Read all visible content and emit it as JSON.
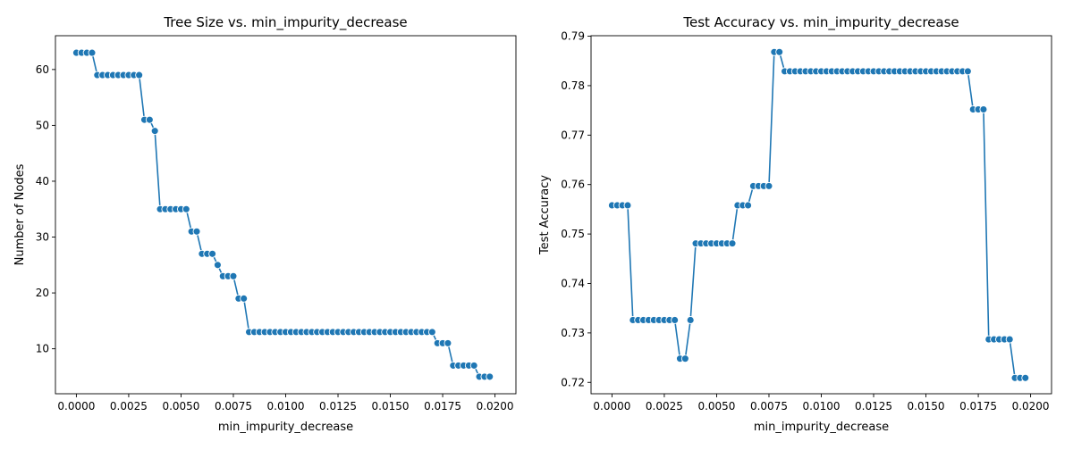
{
  "chart_data": [
    {
      "type": "line",
      "title": "Tree Size vs. min_impurity_decrease",
      "xlabel": "min_impurity_decrease",
      "ylabel": "Number of Nodes",
      "xlim": [
        -0.001,
        0.021
      ],
      "ylim": [
        1.95,
        66.05
      ],
      "xticks": [
        0.0,
        0.0025,
        0.005,
        0.0075,
        0.01,
        0.0125,
        0.015,
        0.0175,
        0.02
      ],
      "xtick_labels": [
        "0.0000",
        "0.0025",
        "0.0050",
        "0.0075",
        "0.0100",
        "0.0125",
        "0.0150",
        "0.0175",
        "0.0200"
      ],
      "yticks": [
        10,
        20,
        30,
        40,
        50,
        60
      ],
      "ytick_labels": [
        "10",
        "20",
        "30",
        "40",
        "50",
        "60"
      ],
      "grid": false,
      "marker": "circle",
      "color": "#1f77b4",
      "x": [
        0.0,
        0.00025,
        0.0005,
        0.00075,
        0.001,
        0.00125,
        0.0015,
        0.00175,
        0.002,
        0.00225,
        0.0025,
        0.00275,
        0.003,
        0.00325,
        0.0035,
        0.00375,
        0.004,
        0.00425,
        0.0045,
        0.00475,
        0.005,
        0.00525,
        0.0055,
        0.00575,
        0.006,
        0.00625,
        0.0065,
        0.00675,
        0.007,
        0.00725,
        0.0075,
        0.00775,
        0.008,
        0.00825,
        0.0085,
        0.00875,
        0.009,
        0.00925,
        0.0095,
        0.00975,
        0.01,
        0.01025,
        0.0105,
        0.01075,
        0.011,
        0.01125,
        0.0115,
        0.01175,
        0.012,
        0.01225,
        0.0125,
        0.01275,
        0.013,
        0.01325,
        0.0135,
        0.01375,
        0.014,
        0.01425,
        0.0145,
        0.01475,
        0.015,
        0.01525,
        0.0155,
        0.01575,
        0.016,
        0.01625,
        0.0165,
        0.01675,
        0.017,
        0.01725,
        0.0175,
        0.01775,
        0.018,
        0.01825,
        0.0185,
        0.01875,
        0.019,
        0.01925,
        0.0195,
        0.01975
      ],
      "y": [
        63,
        63,
        63,
        63,
        59,
        59,
        59,
        59,
        59,
        59,
        59,
        59,
        59,
        51,
        51,
        49,
        35,
        35,
        35,
        35,
        35,
        35,
        31,
        31,
        27,
        27,
        27,
        25,
        23,
        23,
        23,
        19,
        19,
        13,
        13,
        13,
        13,
        13,
        13,
        13,
        13,
        13,
        13,
        13,
        13,
        13,
        13,
        13,
        13,
        13,
        13,
        13,
        13,
        13,
        13,
        13,
        13,
        13,
        13,
        13,
        13,
        13,
        13,
        13,
        13,
        13,
        13,
        13,
        13,
        11,
        11,
        11,
        7,
        7,
        7,
        7,
        7,
        5,
        5,
        5
      ]
    },
    {
      "type": "line",
      "title": "Test Accuracy vs. min_impurity_decrease",
      "xlabel": "min_impurity_decrease",
      "ylabel": "Test Accuracy",
      "xlim": [
        -0.001,
        0.021
      ],
      "ylim": [
        0.7177,
        0.7901
      ],
      "xticks": [
        0.0,
        0.0025,
        0.005,
        0.0075,
        0.01,
        0.0125,
        0.015,
        0.0175,
        0.02
      ],
      "xtick_labels": [
        "0.0000",
        "0.0025",
        "0.0050",
        "0.0075",
        "0.0100",
        "0.0125",
        "0.0150",
        "0.0175",
        "0.0200"
      ],
      "yticks": [
        0.72,
        0.73,
        0.74,
        0.75,
        0.76,
        0.77,
        0.78,
        0.79
      ],
      "ytick_labels": [
        "0.72",
        "0.73",
        "0.74",
        "0.75",
        "0.76",
        "0.77",
        "0.78",
        "0.79"
      ],
      "grid": false,
      "marker": "circle",
      "color": "#1f77b4",
      "x": [
        0.0,
        0.00025,
        0.0005,
        0.00075,
        0.001,
        0.00125,
        0.0015,
        0.00175,
        0.002,
        0.00225,
        0.0025,
        0.00275,
        0.003,
        0.00325,
        0.0035,
        0.00375,
        0.004,
        0.00425,
        0.0045,
        0.00475,
        0.005,
        0.00525,
        0.0055,
        0.00575,
        0.006,
        0.00625,
        0.0065,
        0.00675,
        0.007,
        0.00725,
        0.0075,
        0.00775,
        0.008,
        0.00825,
        0.0085,
        0.00875,
        0.009,
        0.00925,
        0.0095,
        0.00975,
        0.01,
        0.01025,
        0.0105,
        0.01075,
        0.011,
        0.01125,
        0.0115,
        0.01175,
        0.012,
        0.01225,
        0.0125,
        0.01275,
        0.013,
        0.01325,
        0.0135,
        0.01375,
        0.014,
        0.01425,
        0.0145,
        0.01475,
        0.015,
        0.01525,
        0.0155,
        0.01575,
        0.016,
        0.01625,
        0.0165,
        0.01675,
        0.017,
        0.01725,
        0.0175,
        0.01775,
        0.018,
        0.01825,
        0.0185,
        0.01875,
        0.019,
        0.01925,
        0.0195,
        0.01975
      ],
      "y": [
        0.7558,
        0.7558,
        0.7558,
        0.7558,
        0.7326,
        0.7326,
        0.7326,
        0.7326,
        0.7326,
        0.7326,
        0.7326,
        0.7326,
        0.7326,
        0.7248,
        0.7248,
        0.7326,
        0.7481,
        0.7481,
        0.7481,
        0.7481,
        0.7481,
        0.7481,
        0.7481,
        0.7481,
        0.7558,
        0.7558,
        0.7558,
        0.7597,
        0.7597,
        0.7597,
        0.7597,
        0.7868,
        0.7868,
        0.7829,
        0.7829,
        0.7829,
        0.7829,
        0.7829,
        0.7829,
        0.7829,
        0.7829,
        0.7829,
        0.7829,
        0.7829,
        0.7829,
        0.7829,
        0.7829,
        0.7829,
        0.7829,
        0.7829,
        0.7829,
        0.7829,
        0.7829,
        0.7829,
        0.7829,
        0.7829,
        0.7829,
        0.7829,
        0.7829,
        0.7829,
        0.7829,
        0.7829,
        0.7829,
        0.7829,
        0.7829,
        0.7829,
        0.7829,
        0.7829,
        0.7829,
        0.7752,
        0.7752,
        0.7752,
        0.7287,
        0.7287,
        0.7287,
        0.7287,
        0.7287,
        0.7209,
        0.7209,
        0.7209
      ]
    }
  ]
}
